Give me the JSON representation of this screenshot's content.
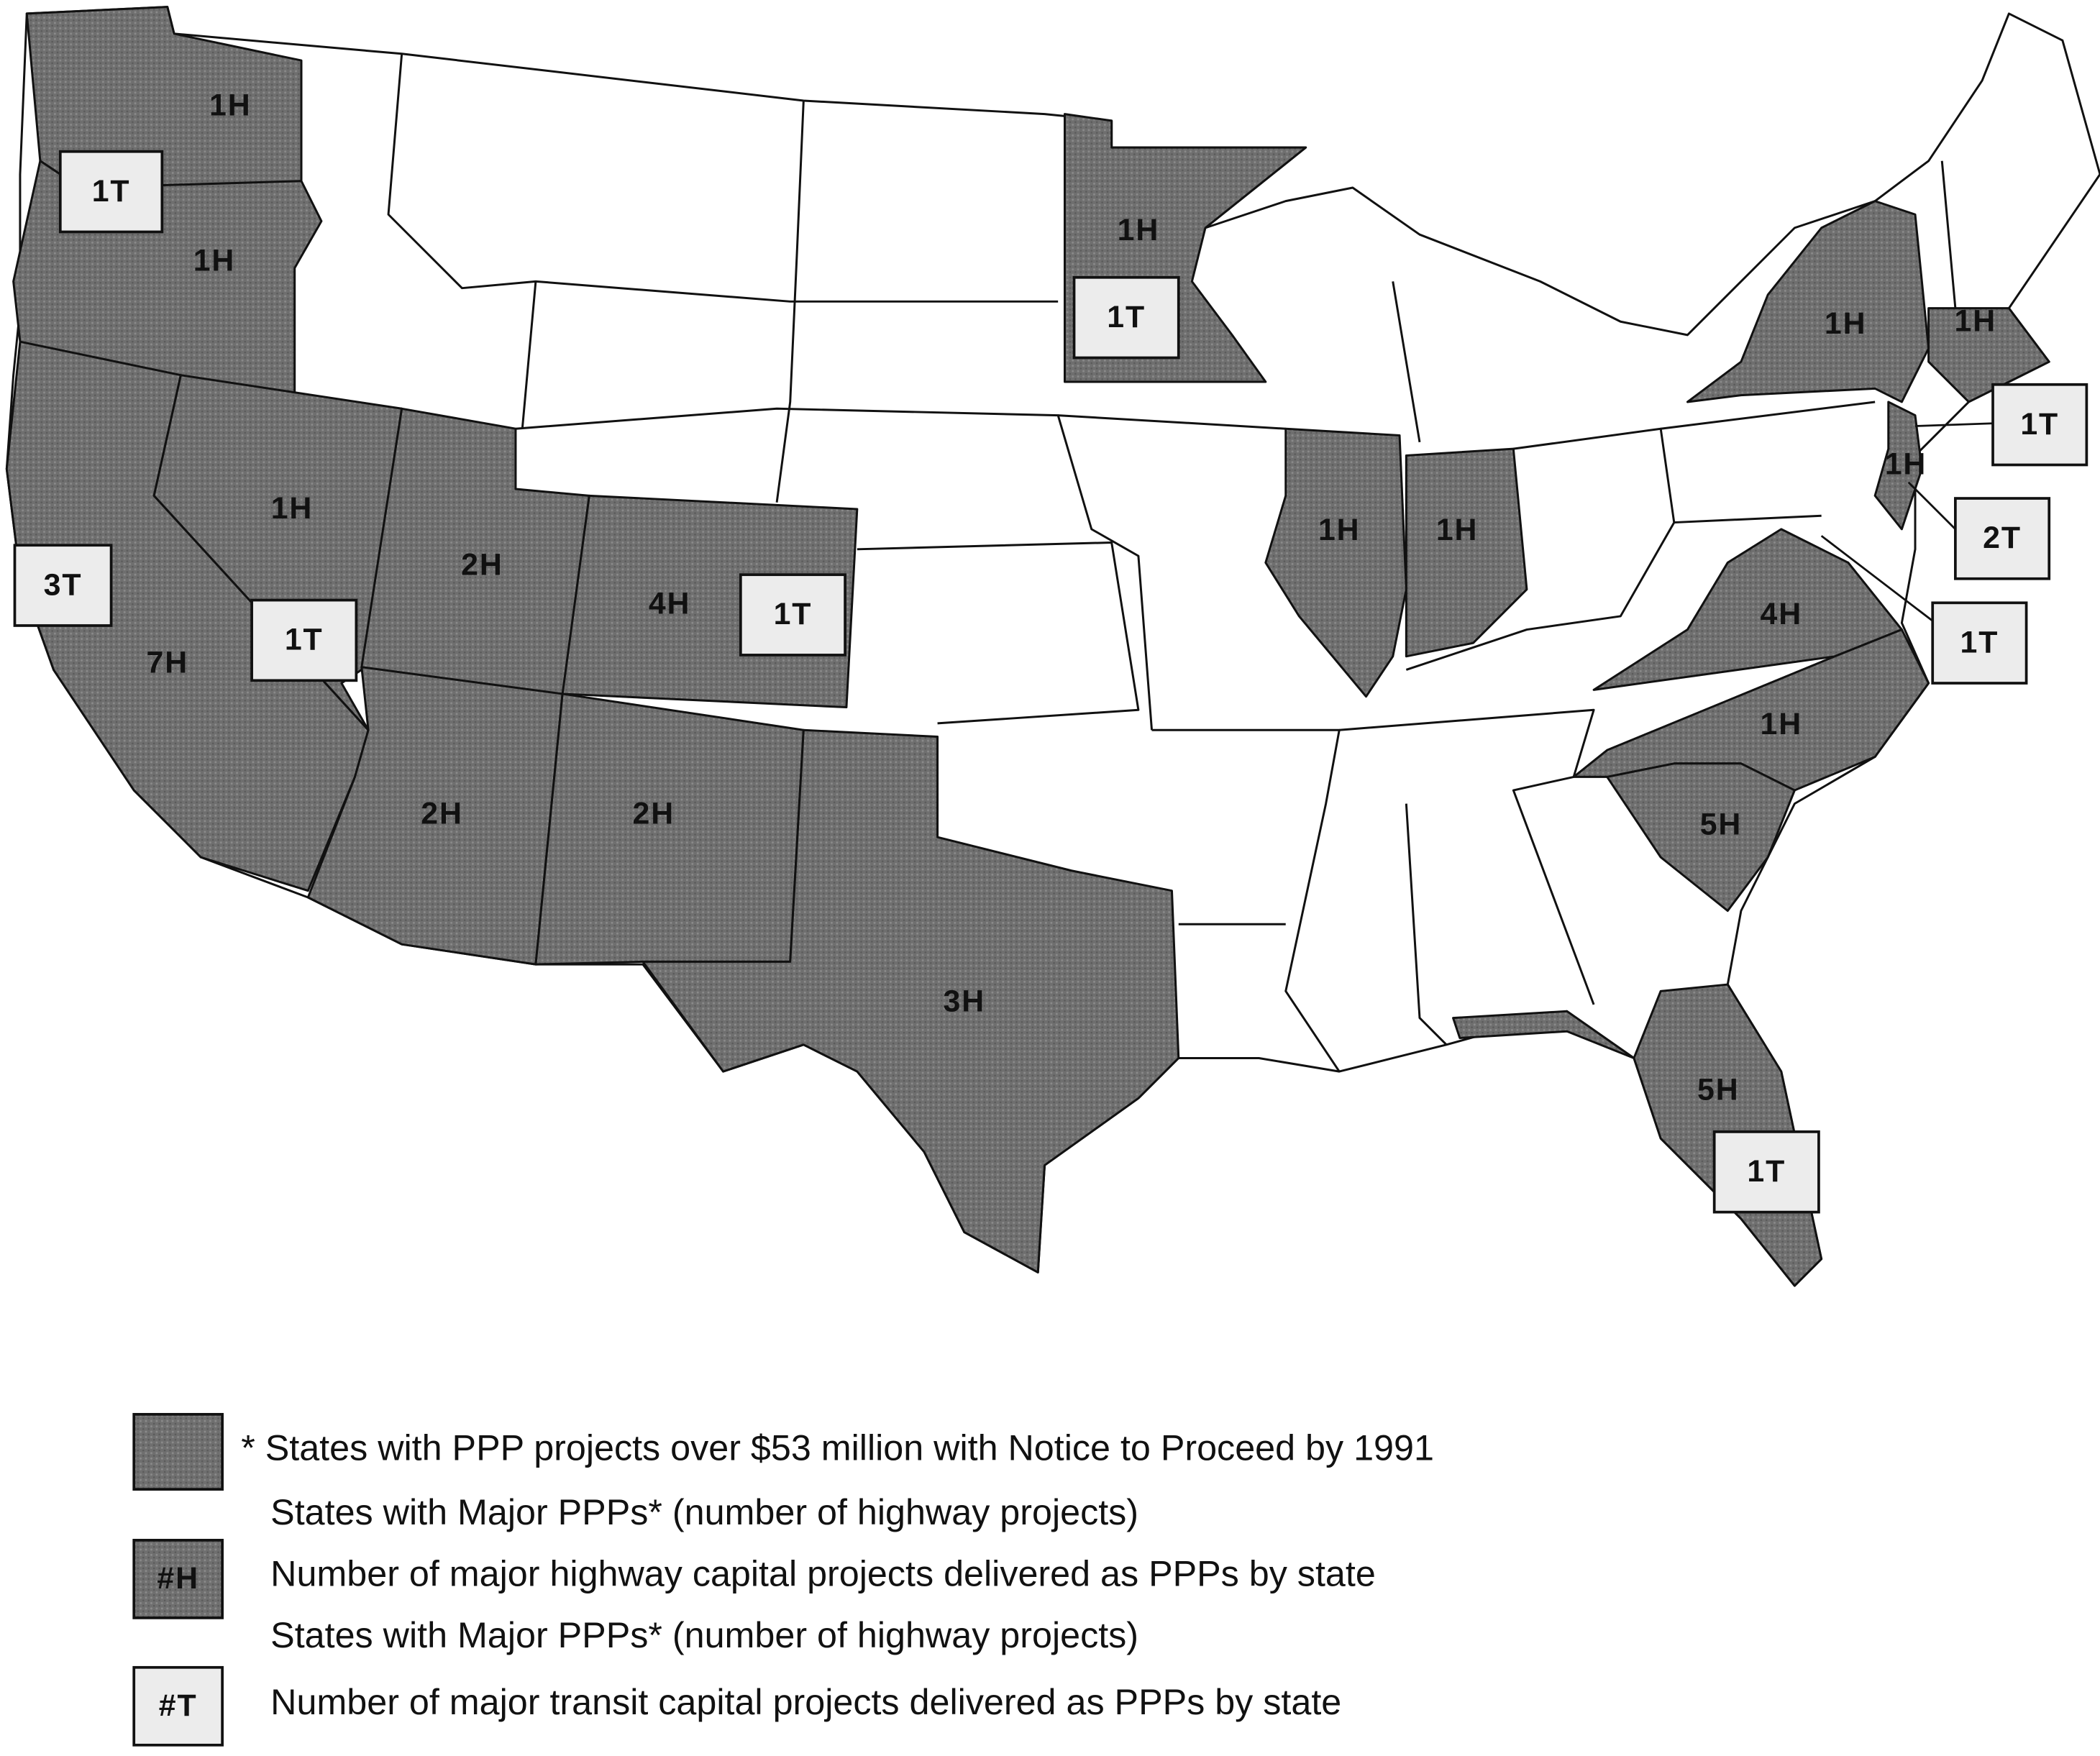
{
  "map": {
    "highway_labels": [
      "1H",
      "1H",
      "1H",
      "2H",
      "4H",
      "7H",
      "2H",
      "2H",
      "3H",
      "1H",
      "1H",
      "1H",
      "1H",
      "1H",
      "1H",
      "4H",
      "1H",
      "5H",
      "5H"
    ],
    "transit_labels": [
      "1T",
      "3T",
      "1T",
      "1T",
      "1T",
      "1T",
      "2T",
      "1T",
      "1T"
    ]
  },
  "legend": {
    "shaded_note": "* States with PPP projects over $53 million with Notice to Proceed by 1991",
    "shaded_label": "States with Major PPPs* (number of highway projects)",
    "highway_swatch": "#H",
    "highway_text": "Number of major highway capital projects delivered as PPPs by state",
    "transit_label": "States with Major PPPs* (number of highway projects)",
    "transit_swatch": "#T",
    "transit_text": "Number of major transit capital projects delivered as PPPs by state"
  }
}
